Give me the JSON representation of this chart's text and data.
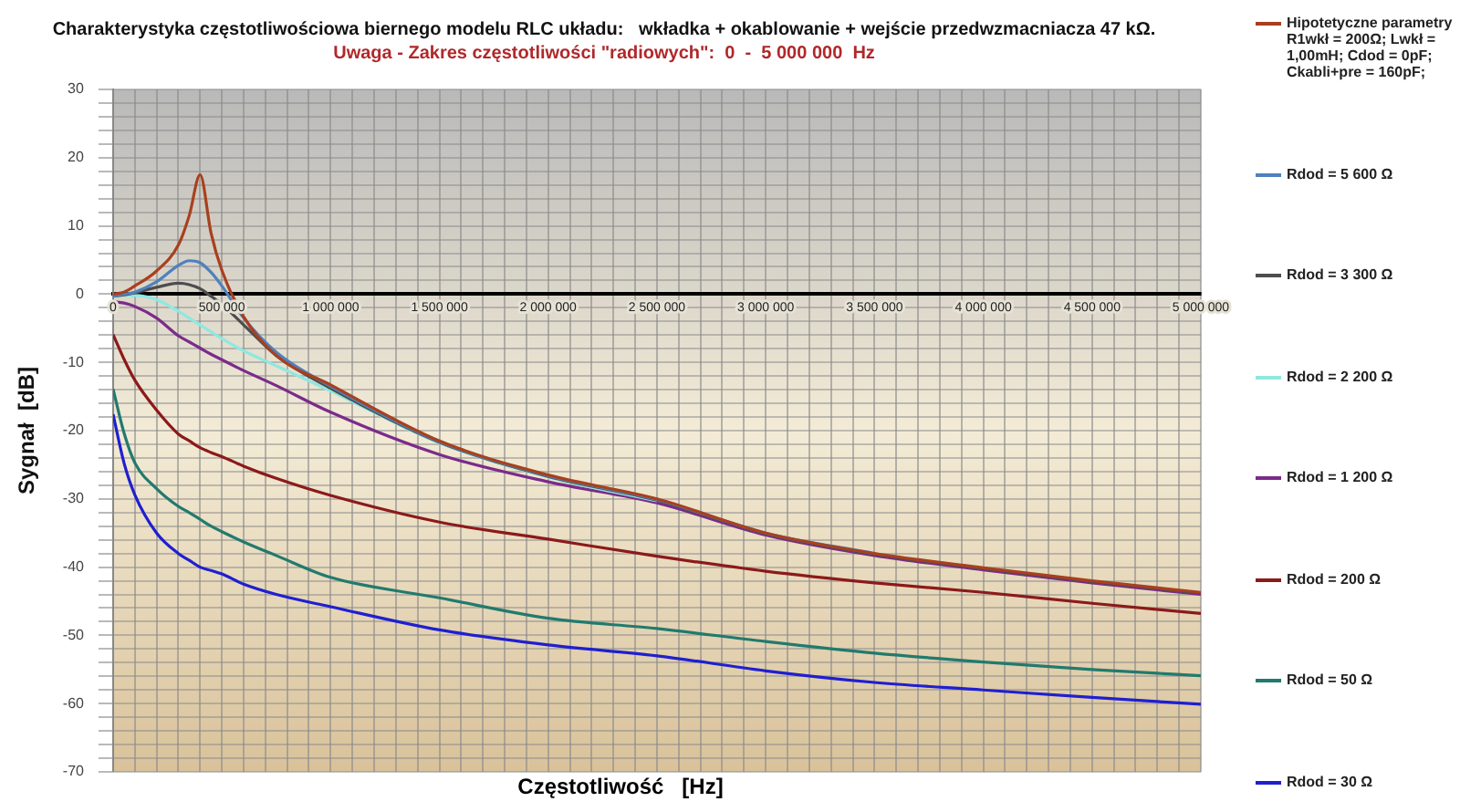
{
  "chart_data": {
    "type": "line",
    "title": "Charakterystyka częstotliwościowa biernego modelu RLC układu:   wkładka + okablowanie + wejście przedwzmacniacza 47 kΩ.",
    "subtitle": "Uwaga - Zakres częstotliwości \"radiowych\":  0  -  5 000 000  Hz",
    "xlabel": "Częstotliwość   [Hz]",
    "ylabel": "Sygnał  [dB]",
    "x": [
      0,
      50000,
      100000,
      200000,
      300000,
      350000,
      400000,
      450000,
      500000,
      600000,
      750000,
      1000000,
      1500000,
      2000000,
      2500000,
      3000000,
      3500000,
      4000000,
      4500000,
      5000000
    ],
    "series": [
      {
        "name": "Hipotetyczne parametry R1wkł = 200Ω;  Lwkł = 1,00mH; Cdod = 0pF;  Ckabli+pre = 160pF;",
        "color": "#a8401e",
        "values": [
          0,
          0.3,
          1.2,
          3.4,
          7.2,
          11.5,
          17.5,
          9,
          3.5,
          -3.3,
          -9,
          -13.3,
          -21.5,
          -26.5,
          -30,
          -35,
          -38,
          -40.1,
          -42,
          -43.7
        ]
      },
      {
        "name": "Rdod = 5 600  Ω",
        "color": "#4f81bd",
        "values": [
          -0.3,
          0,
          0.3,
          1.8,
          4.2,
          4.9,
          4.6,
          3.2,
          1.2,
          -3.5,
          -8.5,
          -13.5,
          -21.6,
          -26.6,
          -30.1,
          -35,
          -38,
          null,
          null,
          null
        ]
      },
      {
        "name": "Rdod = 3 300  Ω",
        "color": "#4d4d4d",
        "values": [
          -0.3,
          -0.1,
          0.2,
          1,
          1.6,
          1.4,
          0.8,
          -0.3,
          -1.5,
          -4.5,
          -9,
          -13.8,
          -21.7,
          -26.7,
          -30.2,
          -35.1,
          -38.1,
          -40.2,
          -42.1,
          -43.8
        ]
      },
      {
        "name": "Rdod = 2 200  Ω",
        "color": "#8fe8e0",
        "values": [
          -0.2,
          -0.2,
          -0.2,
          -0.8,
          -2.5,
          -3.5,
          -4.5,
          -5.5,
          -6.5,
          -8.3,
          -10.5,
          -14.2,
          -21.8,
          -26.8,
          -30.3,
          null,
          null,
          null,
          null,
          null
        ]
      },
      {
        "name": "Rdod = 1 200  Ω",
        "color": "#7b2b8a",
        "values": [
          -1.1,
          -1.3,
          -1.8,
          -3.5,
          -6.1,
          -7,
          -7.9,
          -8.8,
          -9.6,
          -11.2,
          -13.4,
          -17.3,
          -23.5,
          -27.5,
          -30.6,
          -35.3,
          -38.3,
          -40.4,
          -42.3,
          -44
        ]
      },
      {
        "name": "Rdod = 200  Ω",
        "color": "#8b1a1a",
        "values": [
          -5.9,
          -9.5,
          -12.6,
          -17,
          -20.5,
          -21.5,
          -22.5,
          -23.2,
          -23.8,
          -25.2,
          -27,
          -29.5,
          -33.4,
          -35.9,
          -38.4,
          -40.6,
          -42.3,
          -43.7,
          -45.3,
          -46.8
        ]
      },
      {
        "name": "Rdod = 50  Ω",
        "color": "#217a6e",
        "values": [
          -13.9,
          -20.3,
          -24.7,
          -28.5,
          -31.1,
          -32,
          -33,
          -34,
          -34.8,
          -36.3,
          -38.3,
          -41.5,
          -44.5,
          -47.5,
          -49,
          -50.9,
          -52.6,
          -53.9,
          -55,
          -55.9
        ]
      },
      {
        "name": "Rdod = 30  Ω",
        "color": "#1f1fd0",
        "values": [
          -17.6,
          -24.7,
          -29.4,
          -35,
          -38,
          -39,
          -40,
          -40.5,
          -41,
          -42.5,
          -44,
          -45.8,
          -49.2,
          -51.4,
          -53,
          -55.2,
          -56.9,
          -58,
          -59.1,
          -60.1
        ]
      }
    ],
    "xlim": [
      0,
      5000000
    ],
    "ylim": [
      -70,
      30
    ],
    "xticks": [
      0,
      {
        "value": 100000,
        "label": null
      },
      {
        "value": 200000,
        "label": null
      },
      {
        "value": 300000,
        "label": null
      },
      {
        "value": 400000,
        "label": null
      },
      {
        "value": 500000,
        "label": "500 000"
      },
      {
        "value": 600000,
        "label": null
      },
      {
        "value": 700000,
        "label": null
      },
      {
        "value": 800000,
        "label": null
      },
      {
        "value": 900000,
        "label": null
      },
      {
        "value": 1000000,
        "label": "1 000 000"
      },
      {
        "value": 1100000,
        "label": null
      },
      {
        "value": 1200000,
        "label": null
      },
      {
        "value": 1300000,
        "label": null
      },
      {
        "value": 1400000,
        "label": null
      },
      {
        "value": 1500000,
        "label": "1 500 000"
      },
      {
        "value": 1600000,
        "label": null
      },
      {
        "value": 1700000,
        "label": null
      },
      {
        "value": 1800000,
        "label": null
      },
      {
        "value": 1900000,
        "label": null
      },
      {
        "value": 2000000,
        "label": "2 000 000"
      },
      {
        "value": 2100000,
        "label": null
      },
      {
        "value": 2200000,
        "label": null
      },
      {
        "value": 2300000,
        "label": null
      },
      {
        "value": 2400000,
        "label": null
      },
      {
        "value": 2500000,
        "label": "2 500 000"
      },
      {
        "value": 2600000,
        "label": null
      },
      {
        "value": 2700000,
        "label": null
      },
      {
        "value": 2800000,
        "label": null
      },
      {
        "value": 2900000,
        "label": null
      },
      {
        "value": 3000000,
        "label": "3 000 000"
      },
      {
        "value": 3100000,
        "label": null
      },
      {
        "value": 3200000,
        "label": null
      },
      {
        "value": 3300000,
        "label": null
      },
      {
        "value": 3400000,
        "label": null
      },
      {
        "value": 3500000,
        "label": "3 500 000"
      },
      {
        "value": 3600000,
        "label": null
      },
      {
        "value": 3700000,
        "label": null
      },
      {
        "value": 3800000,
        "label": null
      },
      {
        "value": 3900000,
        "label": null
      },
      {
        "value": 4000000,
        "label": "4 000 000"
      },
      {
        "value": 4100000,
        "label": null
      },
      {
        "value": 4200000,
        "label": null
      },
      {
        "value": 4300000,
        "label": null
      },
      {
        "value": 4400000,
        "label": null
      },
      {
        "value": 4500000,
        "label": "4 500 000"
      },
      {
        "value": 4600000,
        "label": null
      },
      {
        "value": 4700000,
        "label": null
      },
      {
        "value": 4800000,
        "label": null
      },
      {
        "value": 4900000,
        "label": null
      },
      {
        "value": 5000000,
        "label": "5 000 000"
      }
    ],
    "yticks": [
      -70,
      {
        "value": -68,
        "label": null
      },
      {
        "value": -66,
        "label": null
      },
      {
        "value": -64,
        "label": null
      },
      {
        "value": -62,
        "label": null
      },
      -60,
      {
        "value": -58,
        "label": null
      },
      {
        "value": -56,
        "label": null
      },
      {
        "value": -54,
        "label": null
      },
      {
        "value": -52,
        "label": null
      },
      -50,
      {
        "value": -48,
        "label": null
      },
      {
        "value": -46,
        "label": null
      },
      {
        "value": -44,
        "label": null
      },
      {
        "value": -42,
        "label": null
      },
      -40,
      {
        "value": -38,
        "label": null
      },
      {
        "value": -36,
        "label": null
      },
      {
        "value": -34,
        "label": null
      },
      {
        "value": -32,
        "label": null
      },
      -30,
      {
        "value": -28,
        "label": null
      },
      {
        "value": -26,
        "label": null
      },
      {
        "value": -24,
        "label": null
      },
      {
        "value": -22,
        "label": null
      },
      -20,
      {
        "value": -18,
        "label": null
      },
      {
        "value": -16,
        "label": null
      },
      {
        "value": -14,
        "label": null
      },
      {
        "value": -12,
        "label": null
      },
      -10,
      {
        "value": -8,
        "label": null
      },
      {
        "value": -6,
        "label": null
      },
      {
        "value": -4,
        "label": null
      },
      {
        "value": -2,
        "label": null
      },
      0,
      {
        "value": 2,
        "label": null
      },
      {
        "value": 4,
        "label": null
      },
      {
        "value": 6,
        "label": null
      },
      {
        "value": 8,
        "label": null
      },
      10,
      {
        "value": 12,
        "label": null
      },
      {
        "value": 14,
        "label": null
      },
      {
        "value": 16,
        "label": null
      },
      {
        "value": 18,
        "label": null
      },
      20,
      {
        "value": 22,
        "label": null
      },
      {
        "value": 24,
        "label": null
      },
      {
        "value": 26,
        "label": null
      },
      {
        "value": 28,
        "label": null
      },
      30
    ],
    "grid": true,
    "legend": "right",
    "marker": "none",
    "line_style": "solid"
  }
}
